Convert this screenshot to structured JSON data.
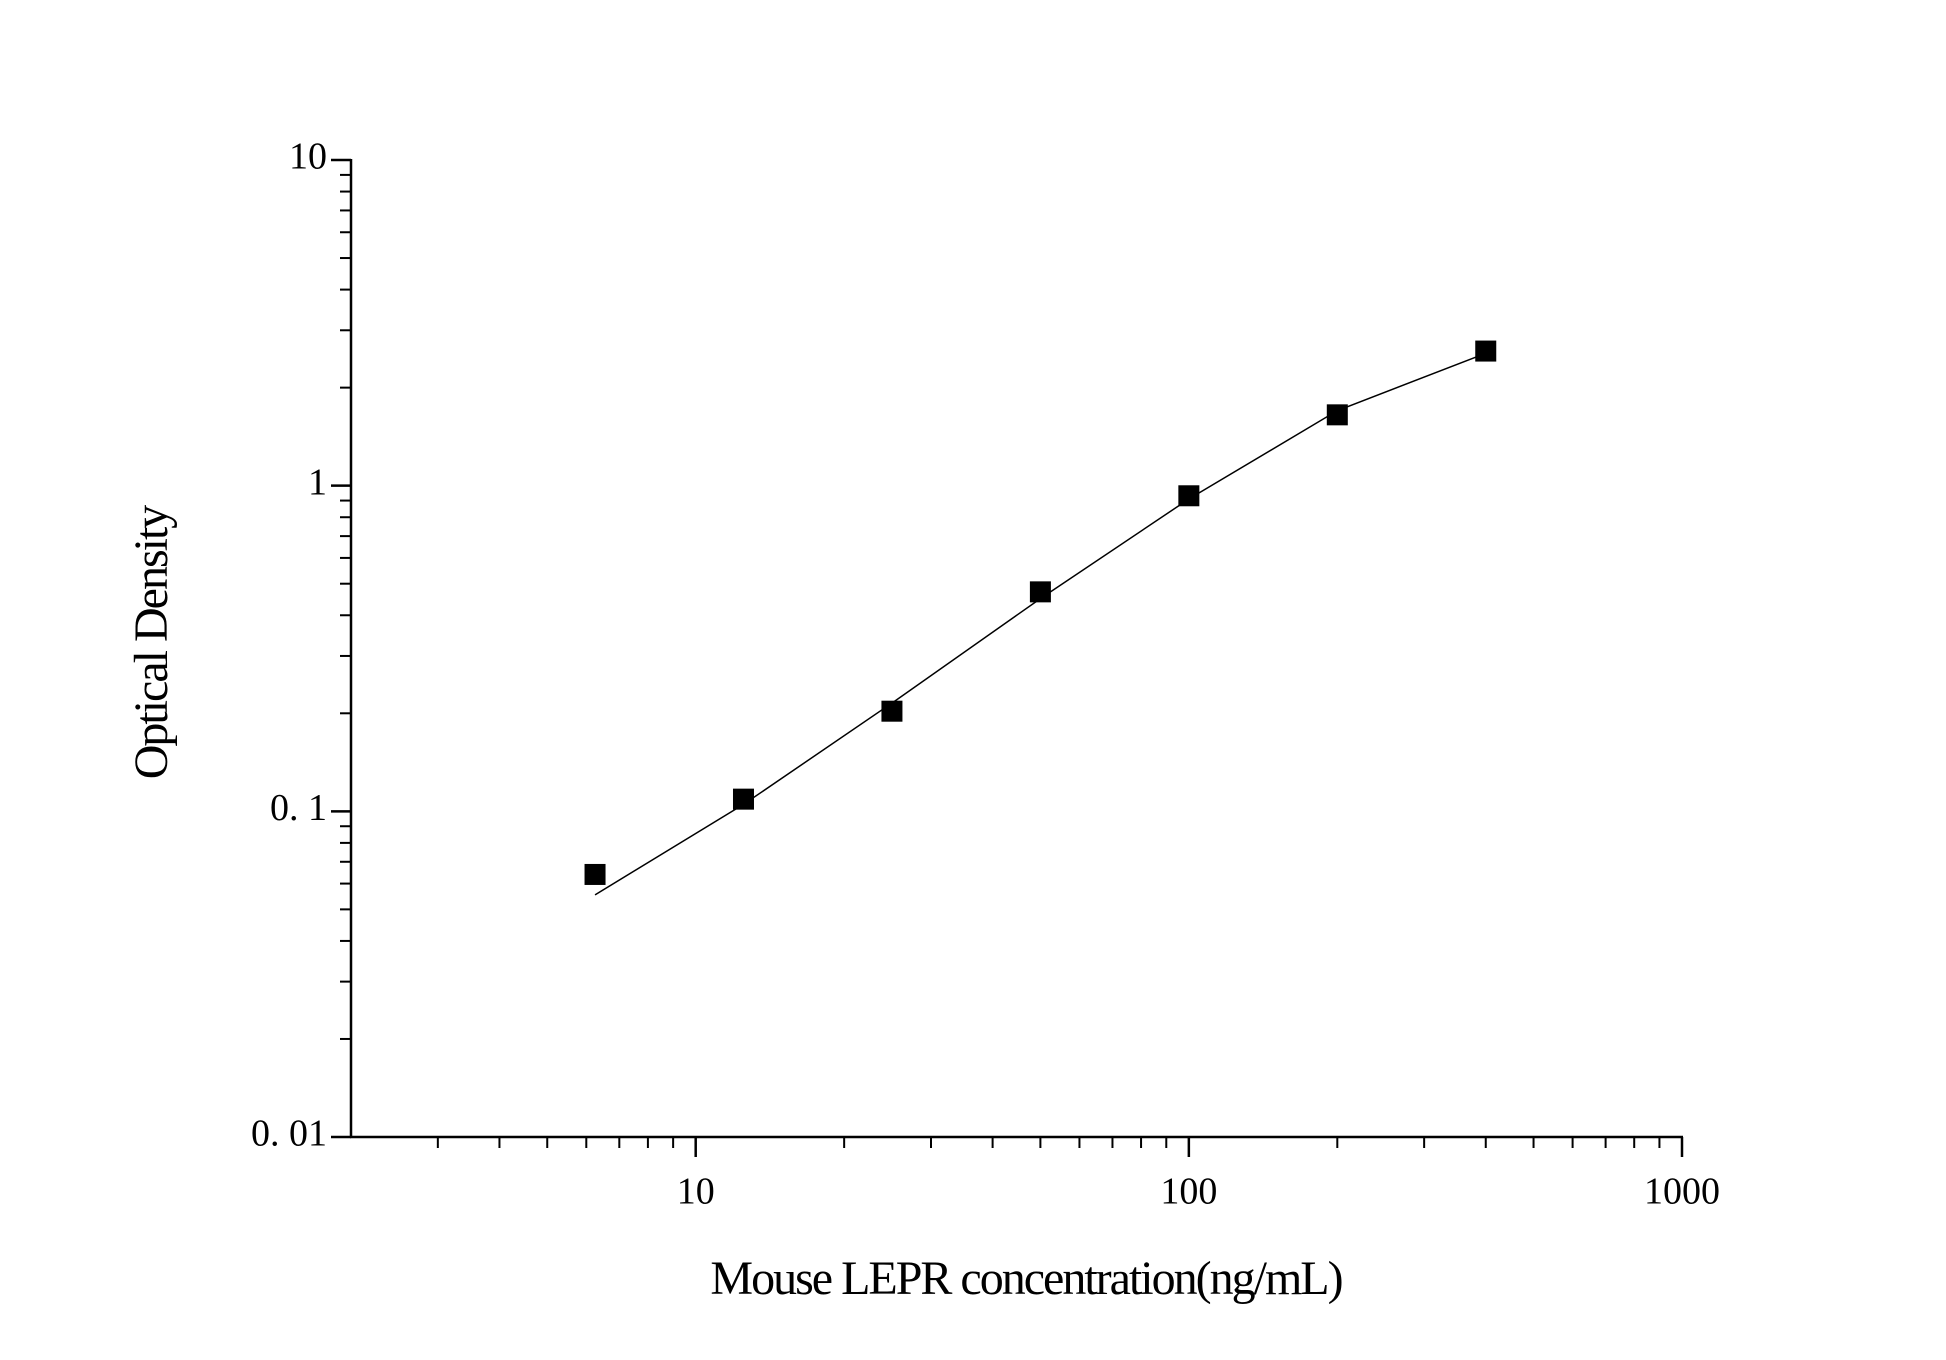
{
  "chart_data": {
    "type": "scatter",
    "x_label": "Mouse  LEPR  concentration(ng/mL)",
    "y_label": "Optical Density",
    "x": [
      6.25,
      12.5,
      25,
      50,
      100,
      200,
      400
    ],
    "series": [
      {
        "values": [
          0.064,
          0.109,
          0.203,
          0.472,
          0.931,
          1.65,
          2.59
        ],
        "color": "#000000",
        "marker": "square"
      },
      {
        "values": [
          0.0554,
          0.105,
          0.215,
          0.45,
          0.91,
          1.7,
          2.55
        ],
        "color": "#000000",
        "marker": "line"
      }
    ],
    "xscale": "log",
    "yscale": "log",
    "xlim": [
      2,
      1000
    ],
    "ylim": [
      0.01,
      10
    ],
    "xticks": [
      10,
      100,
      1000
    ],
    "yticks": [
      {
        "value": 0.01,
        "label": "0. 01"
      },
      {
        "value": 0.1,
        "label": "0. 1"
      },
      1,
      10
    ],
    "xminorticks": [
      3,
      4,
      5,
      6,
      7,
      8,
      9,
      20,
      30,
      40,
      50,
      60,
      70,
      80,
      90,
      200,
      300,
      400,
      500,
      600,
      700,
      800,
      900
    ],
    "yminorticks": [
      0.02,
      0.03,
      0.04,
      0.05,
      0.06,
      0.07,
      0.08,
      0.09,
      0.2,
      0.3,
      0.4,
      0.5,
      0.6,
      0.7,
      0.8,
      0.9,
      2,
      3,
      4,
      5,
      6,
      7,
      8,
      9
    ],
    "grid": false
  }
}
